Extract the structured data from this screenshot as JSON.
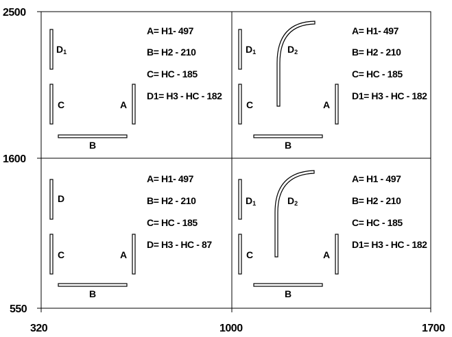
{
  "axes": {
    "y_ticks": [
      "2500",
      "1600",
      "550"
    ],
    "x_ticks": [
      "320",
      "1000",
      "1700"
    ]
  },
  "panels": [
    {
      "formulas": [
        "A= H1- 497",
        "B= H2 - 210",
        "C= HC - 185",
        "D1= H3 - HC - 182"
      ],
      "labels": {
        "d": "D",
        "d_sub": "1",
        "c": "C",
        "a": "A",
        "b": "B"
      }
    },
    {
      "formulas": [
        "A= H1- 497",
        "B= H2 - 210",
        "C= HC - 185",
        "D1= H3 - HC - 182"
      ],
      "labels": {
        "d": "D",
        "d_sub": "1",
        "d2": "D",
        "d2_sub": "2",
        "c": "C",
        "a": "A",
        "b": "B"
      }
    },
    {
      "formulas": [
        "A= H1- 497",
        "B= H2 - 210",
        "C= HC - 185",
        "D= H3 - HC - 87"
      ],
      "labels": {
        "d": "D",
        "c": "C",
        "a": "A",
        "b": "B"
      }
    },
    {
      "formulas": [
        "A= H1 - 497",
        "B= H2 - 210",
        "C= HC - 185",
        "D1= H3 - HC - 182"
      ],
      "labels": {
        "d": "D",
        "d_sub": "1",
        "d2": "D",
        "d2_sub": "2",
        "c": "C",
        "a": "A",
        "b": "B"
      }
    }
  ]
}
